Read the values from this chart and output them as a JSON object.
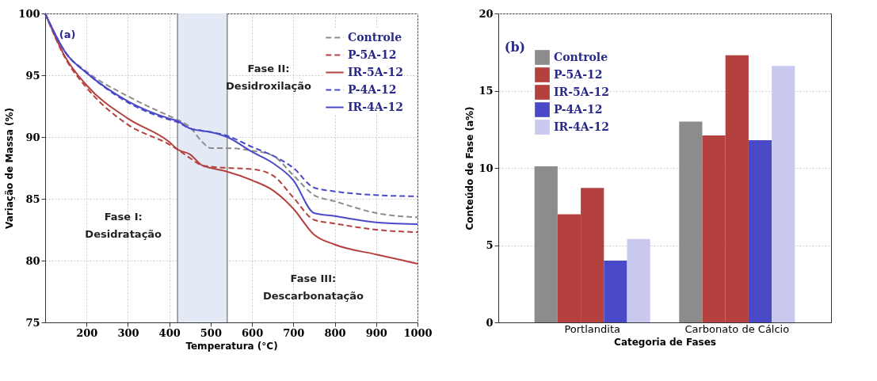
{
  "chart_data": [
    {
      "type": "line",
      "xlabel": "Temperatura (°C)",
      "ylabel": "Variação de Massa (%)",
      "xlim": [
        100,
        1000
      ],
      "xticks": [
        200,
        300,
        400,
        500,
        600,
        700,
        800,
        900,
        1000
      ],
      "ylim": [
        75,
        100
      ],
      "yticks": [
        75,
        80,
        85,
        90,
        95,
        100
      ],
      "grid": true,
      "legend": "top right",
      "x": [
        100,
        150,
        200,
        300,
        400,
        420,
        450,
        480,
        500,
        540,
        600,
        650,
        700,
        750,
        800,
        900,
        1000
      ],
      "series": [
        {
          "name": "Controle",
          "color": "#8c8c8c",
          "line_style": "dashed",
          "values": [
            100,
            96.8,
            95.3,
            93.3,
            91.7,
            91.4,
            90.8,
            89.6,
            89.1,
            89.1,
            88.9,
            88.5,
            86.9,
            85.3,
            84.8,
            83.85,
            83.5
          ]
        },
        {
          "name": "P-5A-12",
          "color": "#b5413f",
          "line_style": "dashed",
          "values": [
            100,
            96.3,
            94.0,
            91.0,
            89.4,
            89.0,
            88.3,
            87.7,
            87.6,
            87.5,
            87.4,
            86.9,
            85.1,
            83.3,
            83.0,
            82.5,
            82.3
          ]
        },
        {
          "name": "IR-5A-12",
          "color": "#b5413f",
          "line_style": "solid",
          "values": [
            100,
            96.4,
            94.2,
            91.5,
            89.6,
            89.0,
            88.6,
            87.7,
            87.5,
            87.2,
            86.5,
            85.7,
            84.2,
            82.1,
            81.3,
            80.5,
            79.75
          ]
        },
        {
          "name": "P-4A-12",
          "color": "#4a4ac8",
          "line_style": "dashed",
          "values": [
            100,
            96.8,
            95.2,
            92.8,
            91.4,
            91.2,
            90.7,
            90.5,
            90.4,
            90.1,
            89.2,
            88.5,
            87.5,
            85.9,
            85.6,
            85.3,
            85.2
          ]
        },
        {
          "name": "IR-4A-12",
          "color": "#4a4ac8",
          "line_style": "solid",
          "values": [
            100,
            96.8,
            95.2,
            92.9,
            91.5,
            91.3,
            90.7,
            90.5,
            90.4,
            90.0,
            88.8,
            87.9,
            86.5,
            83.85,
            83.6,
            83.1,
            82.95
          ]
        }
      ],
      "bands": [
        {
          "axis": "x",
          "from": 420,
          "to": 540,
          "color": "#e3eaf6"
        }
      ],
      "ref_lines": [
        {
          "axis": "x",
          "value": 420,
          "color": "#888888"
        },
        {
          "axis": "x",
          "value": 540,
          "color": "#888888"
        }
      ],
      "annotations": [
        "(a)",
        "Fase II:\nDesidroxilação",
        "Fase I:\nDesidratação",
        "Fase III:\nDescarbonatação"
      ]
    },
    {
      "type": "bar",
      "xlabel": "Categoria de Fases",
      "ylabel": "Conteúdo de Fase (a%)",
      "categories": [
        "Portlandita",
        "Carbonato de Cálcio"
      ],
      "ylim": [
        0,
        20
      ],
      "yticks": [
        0,
        5,
        10,
        15,
        20
      ],
      "grid": "y",
      "legend": "top left",
      "series": [
        {
          "name": "Controle",
          "color": "#8c8c8c",
          "values": [
            10.1,
            13.0
          ]
        },
        {
          "name": "P-5A-12",
          "color": "#b5413f",
          "values": [
            7.0,
            12.1
          ]
        },
        {
          "name": "IR-5A-12",
          "color": "#b5413f",
          "values": [
            8.7,
            17.3
          ]
        },
        {
          "name": "P-4A-12",
          "color": "#4a4ac8",
          "values": [
            4.0,
            11.8
          ]
        },
        {
          "name": "IR-4A-12",
          "color": "#c9c9ef",
          "values": [
            5.4,
            16.6
          ]
        }
      ],
      "annotations": [
        "(b)"
      ]
    }
  ]
}
